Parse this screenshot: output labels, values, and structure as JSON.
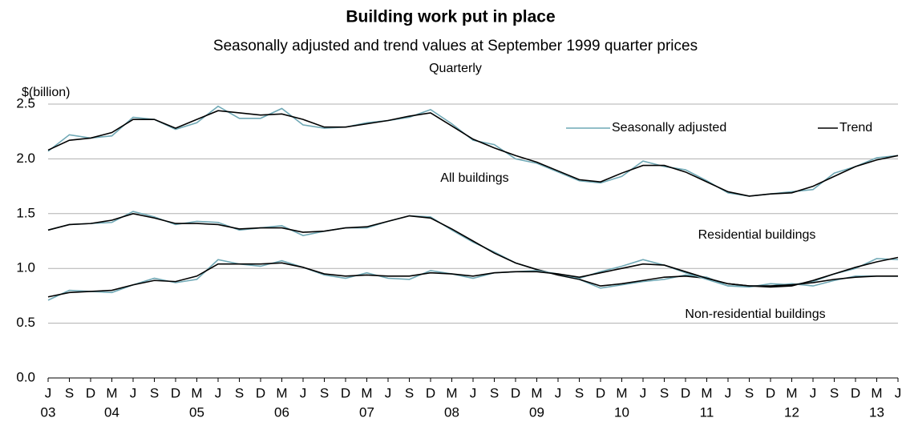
{
  "chart_data": {
    "type": "line",
    "title": "Building work put in place",
    "subtitle": "Seasonally adjusted and trend values at September 1999 quarter prices",
    "frequency": "Quarterly",
    "ylabel": "$(billion)",
    "ylim": [
      0,
      2.5
    ],
    "yticks": [
      {
        "value": 0,
        "label": "0.0"
      },
      0.5,
      {
        "value": 1,
        "label": "1.0"
      },
      1.5,
      {
        "value": 2,
        "label": "2.0"
      },
      2.5
    ],
    "grid": true,
    "categories": [
      "J",
      "S",
      "D",
      "M",
      "J",
      "S",
      "D",
      "M",
      "J",
      "S",
      "D",
      "M",
      "J",
      "S",
      "D",
      "M",
      "J",
      "S",
      "D",
      "M",
      "J",
      "S",
      "D",
      "M",
      "J",
      "S",
      "D",
      "M",
      "J",
      "S",
      "D",
      "M",
      "J",
      "S",
      "D",
      "M",
      "J",
      "S",
      "D",
      "M",
      "J"
    ],
    "category_years": [
      "03",
      null,
      null,
      "04",
      null,
      null,
      null,
      "05",
      null,
      null,
      null,
      "06",
      null,
      null,
      null,
      "07",
      null,
      null,
      null,
      "08",
      null,
      null,
      null,
      "09",
      null,
      null,
      null,
      "10",
      null,
      null,
      null,
      "11",
      null,
      null,
      null,
      "12",
      null,
      null,
      null,
      "13",
      null
    ],
    "legend": [
      {
        "name": "Seasonally adjusted",
        "color": "#6fa8b5"
      },
      {
        "name": "Trend",
        "color": "#000000"
      }
    ],
    "groups": [
      {
        "label": "All buildings",
        "seasonally_adjusted": [
          2.07,
          2.22,
          2.19,
          2.21,
          2.38,
          2.36,
          2.27,
          2.33,
          2.48,
          2.37,
          2.37,
          2.46,
          2.31,
          2.28,
          2.29,
          2.33,
          2.35,
          2.38,
          2.45,
          2.32,
          2.17,
          2.13,
          2.0,
          1.96,
          1.88,
          1.8,
          1.78,
          1.84,
          1.98,
          1.93,
          1.9,
          1.8,
          1.69,
          1.66,
          1.68,
          1.7,
          1.72,
          1.87,
          1.93,
          2.01,
          2.03
        ],
        "trend": [
          2.08,
          2.17,
          2.19,
          2.24,
          2.36,
          2.36,
          2.28,
          2.36,
          2.44,
          2.42,
          2.4,
          2.41,
          2.36,
          2.29,
          2.29,
          2.32,
          2.35,
          2.39,
          2.42,
          2.3,
          2.18,
          2.1,
          2.03,
          1.97,
          1.89,
          1.81,
          1.79,
          1.87,
          1.94,
          1.94,
          1.88,
          1.79,
          1.7,
          1.66,
          1.68,
          1.69,
          1.75,
          1.84,
          1.93,
          1.99,
          2.03
        ]
      },
      {
        "label": "Residential buildings",
        "seasonally_adjusted": [
          1.35,
          1.4,
          1.41,
          1.42,
          1.52,
          1.47,
          1.4,
          1.43,
          1.42,
          1.35,
          1.37,
          1.39,
          1.3,
          1.34,
          1.37,
          1.37,
          1.43,
          1.48,
          1.47,
          1.35,
          1.24,
          1.15,
          1.05,
          0.99,
          0.94,
          0.9,
          0.82,
          0.85,
          0.88,
          0.9,
          0.94,
          0.92,
          0.84,
          0.83,
          0.86,
          0.85,
          0.88,
          0.95,
          1.0,
          1.09,
          1.08
        ],
        "trend": [
          1.35,
          1.4,
          1.41,
          1.44,
          1.5,
          1.46,
          1.41,
          1.41,
          1.4,
          1.36,
          1.37,
          1.37,
          1.33,
          1.34,
          1.37,
          1.38,
          1.43,
          1.48,
          1.46,
          1.36,
          1.25,
          1.14,
          1.05,
          0.99,
          0.94,
          0.9,
          0.84,
          0.86,
          0.89,
          0.92,
          0.93,
          0.91,
          0.86,
          0.84,
          0.83,
          0.84,
          0.89,
          0.95,
          1.01,
          1.06,
          1.1
        ]
      },
      {
        "label": "Non-residential buildings",
        "seasonally_adjusted": [
          0.71,
          0.8,
          0.79,
          0.78,
          0.85,
          0.91,
          0.87,
          0.9,
          1.08,
          1.04,
          1.02,
          1.07,
          1.01,
          0.94,
          0.91,
          0.96,
          0.91,
          0.9,
          0.98,
          0.95,
          0.91,
          0.96,
          0.97,
          0.98,
          0.95,
          0.91,
          0.97,
          1.02,
          1.08,
          1.03,
          0.96,
          0.9,
          0.84,
          0.84,
          0.84,
          0.86,
          0.84,
          0.89,
          0.93,
          0.93,
          0.93
        ],
        "trend": [
          0.74,
          0.78,
          0.79,
          0.8,
          0.85,
          0.89,
          0.88,
          0.93,
          1.04,
          1.04,
          1.04,
          1.05,
          1.01,
          0.95,
          0.93,
          0.94,
          0.93,
          0.93,
          0.96,
          0.95,
          0.93,
          0.96,
          0.97,
          0.97,
          0.95,
          0.92,
          0.96,
          1.0,
          1.04,
          1.03,
          0.97,
          0.91,
          0.86,
          0.84,
          0.84,
          0.85,
          0.87,
          0.9,
          0.92,
          0.93,
          0.93
        ]
      }
    ]
  }
}
